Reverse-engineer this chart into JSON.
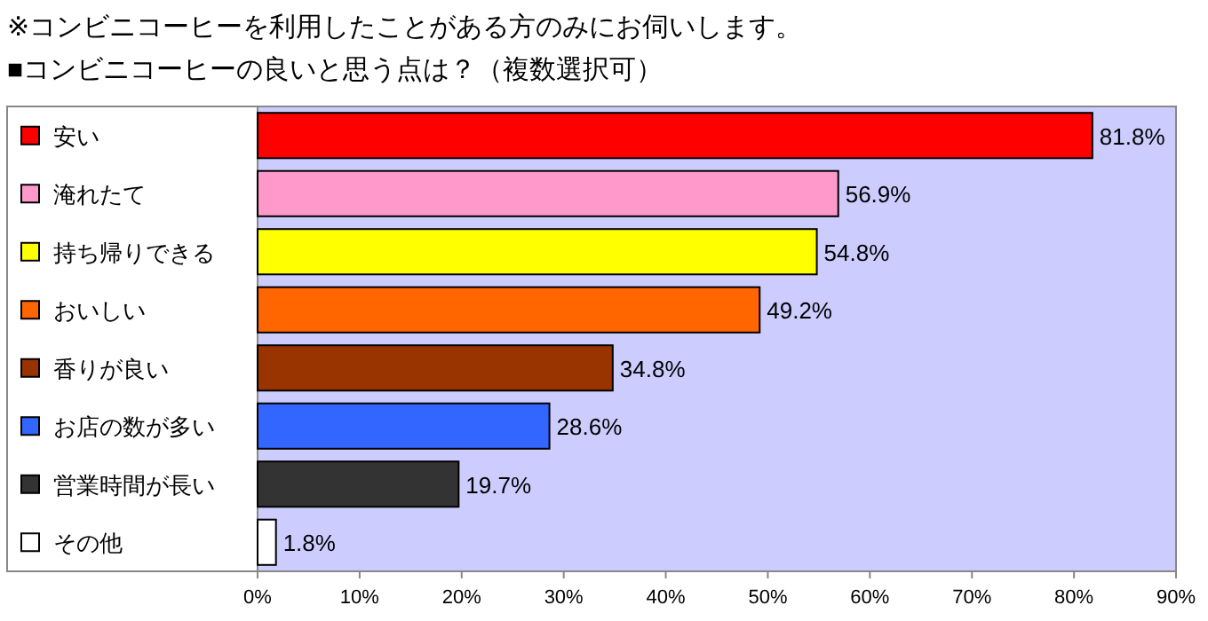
{
  "chart_data": {
    "type": "bar",
    "orientation": "horizontal",
    "title": "※コンビニコーヒーを利用したことがある方のみにお伺いします。",
    "subtitle": "■コンビニコーヒーの良いと思う点は？（複数選択可）",
    "categories": [
      "安い",
      "淹れたて",
      "持ち帰りできる",
      "おいしい",
      "香りが良い",
      "お店の数が多い",
      "営業時間が長い",
      "その他"
    ],
    "values": [
      81.8,
      56.9,
      54.8,
      49.2,
      34.8,
      28.6,
      19.7,
      1.8
    ],
    "value_labels": [
      "81.8%",
      "56.9%",
      "54.8%",
      "49.2%",
      "34.8%",
      "28.6%",
      "19.7%",
      "1.8%"
    ],
    "colors": [
      "#ff0000",
      "#ff99cc",
      "#ffff00",
      "#ff6600",
      "#993300",
      "#3366ff",
      "#333333",
      "#ffffff"
    ],
    "xlim": [
      0,
      90
    ],
    "xticks": [
      {
        "value": 0,
        "label": "0%"
      },
      {
        "value": 10,
        "label": "10%"
      },
      {
        "value": 20,
        "label": "20%"
      },
      {
        "value": 30,
        "label": "30%"
      },
      {
        "value": 40,
        "label": "40%"
      },
      {
        "value": 50,
        "label": "50%"
      },
      {
        "value": 60,
        "label": "60%"
      },
      {
        "value": 70,
        "label": "70%"
      },
      {
        "value": 80,
        "label": "80%"
      },
      {
        "value": 90,
        "label": "90%"
      }
    ]
  }
}
